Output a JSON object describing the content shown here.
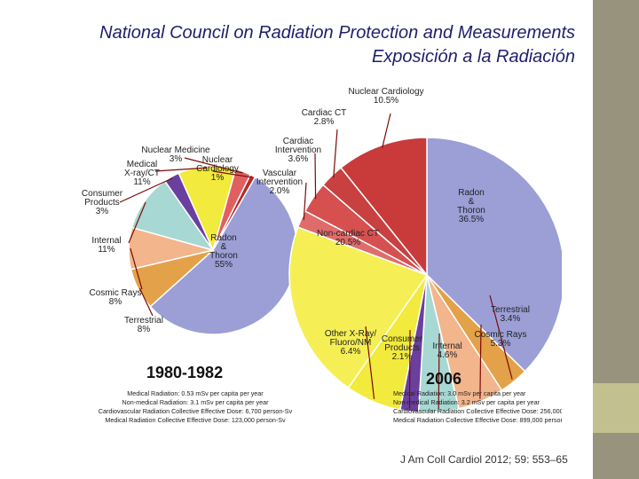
{
  "slide": {
    "title_line1": "National Council on Radiation Protection and Measurements",
    "title_line2": "Exposición a la Radiación",
    "citation": "J Am Coll Cardiol 2012; 59: 553–65"
  },
  "colors": {
    "title": "#1f1f6b",
    "side_bar": "#98937c",
    "side_accent": "#c3c08f"
  },
  "chart_data": [
    {
      "type": "pie",
      "title": "1980-1982",
      "categories": [
        "Radon & Thoron",
        "Terrestrial",
        "Cosmic Rays",
        "Internal",
        "Consumer Products",
        "Medical X-ray/CT",
        "Nuclear Medicine",
        "Nuclear Cardiology"
      ],
      "values": [
        55,
        8,
        8,
        11,
        3,
        11,
        3,
        1
      ],
      "labels": [
        [
          "Radon",
          "&",
          "Thoron",
          "55%"
        ],
        [
          "Terrestrial",
          "8%"
        ],
        [
          "Cosmic Rays",
          "8%"
        ],
        [
          "Internal",
          "11%"
        ],
        [
          "Consumer",
          "Products",
          "3%"
        ],
        [
          "Medical",
          "X-ray/CT",
          "11%"
        ],
        [
          "Nuclear Medicine",
          "3%"
        ],
        [
          "Nuclear",
          "Cardiology",
          "1%"
        ]
      ],
      "colors": [
        "#9b9fd6",
        "#e3a24a",
        "#f2b58c",
        "#a7d8d3",
        "#6a3f9e",
        "#f2ea3c",
        "#e06060",
        "#b52a2a"
      ],
      "notes": [
        "Medical Radiation: 0.53 mSv per capita per year",
        "Non-medical Radiation: 3.1 mSv per capita per year",
        "Cardiovascular Radiation Collective Effective Dose: 6,700 person-Sv",
        "Medical Radiation Collective Effective Dose: 123,000 person-Sv"
      ]
    },
    {
      "type": "pie",
      "title": "2006",
      "categories": [
        "Radon & Thoron",
        "Terrestrial",
        "Cosmic Rays",
        "Internal",
        "Consumer Products",
        "Other X-Ray/Fluoro/NM",
        "Non-cardiac CT",
        "Vascular Intervention",
        "Cardiac Intervention",
        "Cardiac CT",
        "Nuclear Cardiology"
      ],
      "values": [
        36.5,
        3.4,
        5.3,
        4.6,
        2.1,
        6.4,
        20.5,
        2.0,
        3.6,
        2.8,
        10.5
      ],
      "labels": [
        [
          "Radon",
          "&",
          "Thoron",
          "36.5%"
        ],
        [
          "Terrestrial",
          "3.4%"
        ],
        [
          "Cosmic Rays",
          "5.3%"
        ],
        [
          "Internal",
          "4.6%"
        ],
        [
          "Consumer",
          "Products",
          "2.1%"
        ],
        [
          "Other X-Ray/",
          "Fluoro/NM",
          "6.4%"
        ],
        [
          "Non-cardiac CT",
          "20.5%"
        ],
        [
          "Vascular",
          "Intervention",
          "2.0%"
        ],
        [
          "Cardiac",
          "Intervention",
          "3.6%"
        ],
        [
          "Cardiac CT",
          "2.8%"
        ],
        [
          "Nuclear Cardiology",
          "10.5%"
        ]
      ],
      "colors": [
        "#9b9fd6",
        "#e3a24a",
        "#f2b58c",
        "#a7d8d3",
        "#6a3f9e",
        "#f2ea3c",
        "#f5ef55",
        "#e06b6b",
        "#d65050",
        "#c84040",
        "#c93a3a"
      ],
      "notes": [
        "Medical Radiation: 3.0 mSv per capita per year",
        "Non-medical Radiation: 3.2 mSv per capita per year",
        "Cardiovascular Radiation Collective Effective Dose: 256,000 person-Sv",
        "Medical Radiation Collective Effective Dose: 899,000 person-Sv"
      ]
    }
  ]
}
